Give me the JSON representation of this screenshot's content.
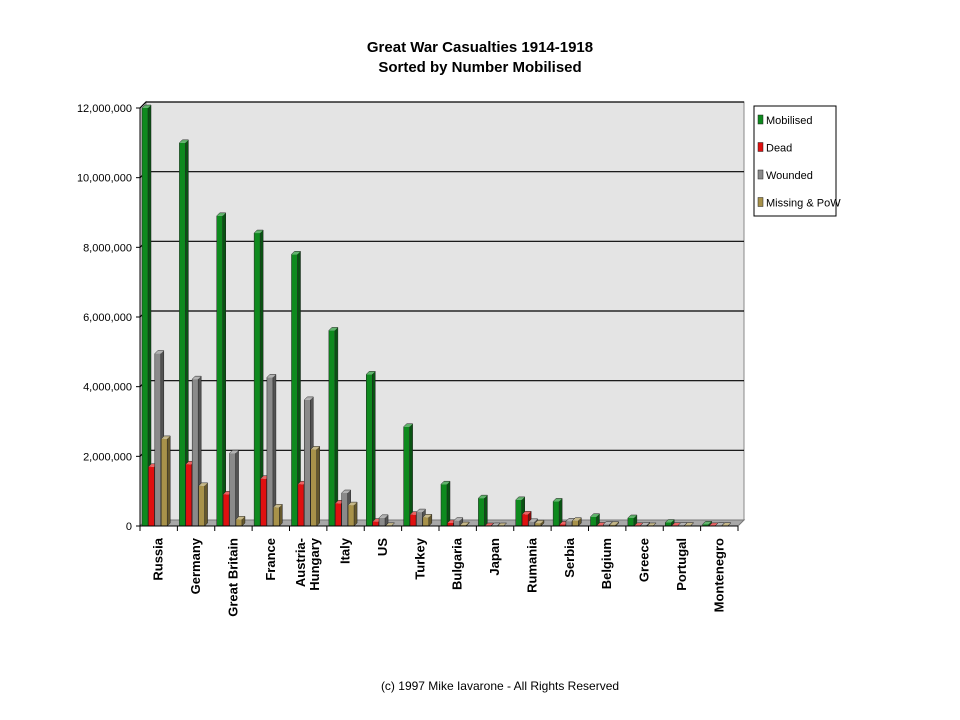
{
  "chart_data": {
    "type": "bar",
    "title": "Great War Casualties 1914-1918",
    "subtitle": "Sorted by Number Mobilised",
    "xlabel": "",
    "ylabel": "",
    "ylim": [
      0,
      12000000
    ],
    "yticks": [
      0,
      2000000,
      4000000,
      6000000,
      8000000,
      10000000,
      12000000
    ],
    "ytick_labels": [
      "0",
      "2,000,000",
      "4,000,000",
      "6,000,000",
      "8,000,000",
      "10,000,000",
      "12,000,000"
    ],
    "grid": true,
    "legend_position": "top-right",
    "categories": [
      "Russia",
      "Germany",
      "Great Britain",
      "France",
      "Austria-Hungary",
      "Italy",
      "US",
      "Turkey",
      "Bulgaria",
      "Japan",
      "Rumania",
      "Serbia",
      "Belgium",
      "Greece",
      "Portugal",
      "Montenegro"
    ],
    "series": [
      {
        "name": "Mobilised",
        "color": "#0e8a1e",
        "values": [
          12000000,
          11000000,
          8904467,
          8410000,
          7800000,
          5615000,
          4355000,
          2850000,
          1200000,
          800000,
          750000,
          707343,
          267000,
          230000,
          100000,
          50000
        ]
      },
      {
        "name": "Dead",
        "color": "#e01010",
        "values": [
          1700000,
          1773700,
          908371,
          1357800,
          1200000,
          650000,
          126000,
          325000,
          87500,
          300,
          335706,
          45000,
          13716,
          5000,
          7222,
          3000
        ]
      },
      {
        "name": "Wounded",
        "color": "#8a8a8a",
        "values": [
          4950000,
          4216058,
          2090212,
          4266000,
          3620000,
          947000,
          234300,
          400000,
          152390,
          907,
          120000,
          133148,
          44686,
          21000,
          13751,
          10000
        ]
      },
      {
        "name": "Missing & PoW",
        "color": "#a8924a",
        "values": [
          2500000,
          1152800,
          191652,
          537000,
          2200000,
          600000,
          4500,
          250000,
          27029,
          3,
          80000,
          152958,
          34659,
          1000,
          12318,
          7000
        ]
      }
    ],
    "legend_labels": [
      "Mobilised",
      "Dead",
      "Wounded",
      "Missing & PoW"
    ],
    "category_labels": [
      [
        "Russia"
      ],
      [
        "Germany"
      ],
      [
        "Great Britain"
      ],
      [
        "France"
      ],
      [
        "Austria-",
        "Hungary"
      ],
      [
        "Italy"
      ],
      [
        "US"
      ],
      [
        "Turkey"
      ],
      [
        "Bulgaria"
      ],
      [
        "Japan"
      ],
      [
        "Rumania"
      ],
      [
        "Serbia"
      ],
      [
        "Belgium"
      ],
      [
        "Greece"
      ],
      [
        "Portugal"
      ],
      [
        "Montenegro"
      ]
    ]
  },
  "footer": {
    "copyright": "(c) 1997 Mike Iavarone - All Rights Reserved"
  }
}
